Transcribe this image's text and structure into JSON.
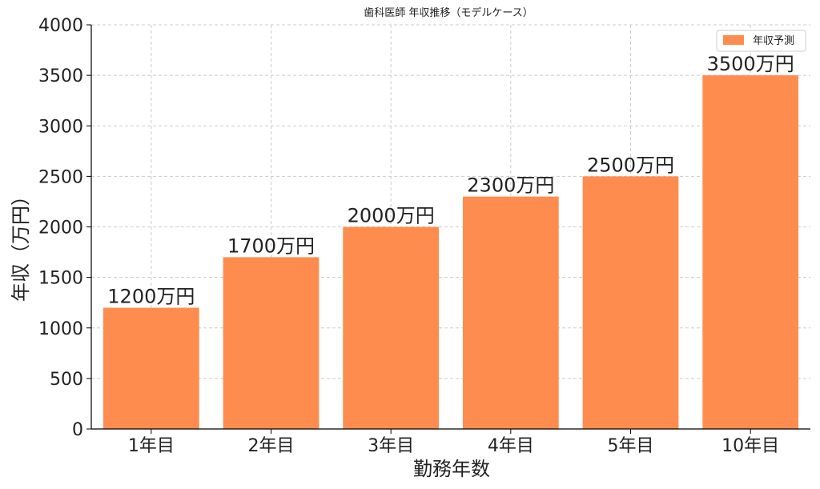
{
  "chart_data": {
    "type": "bar",
    "title": "歯科医師 年収推移（モデルケース）",
    "xlabel": "勤務年数",
    "ylabel": "年収（万円）",
    "categories": [
      "1年目",
      "2年目",
      "3年目",
      "4年目",
      "5年目",
      "10年目"
    ],
    "series": [
      {
        "name": "年収予測",
        "values": [
          1200,
          1700,
          2000,
          2300,
          2500,
          3500
        ]
      }
    ],
    "data_labels": [
      "1200万円",
      "1700万円",
      "2000万円",
      "2300万円",
      "2500万円",
      "3500万円"
    ],
    "ylim": [
      0,
      4000
    ],
    "yticks": [
      0,
      500,
      1000,
      1500,
      2000,
      2500,
      3000,
      3500,
      4000
    ],
    "grid": true,
    "legend_position": "top-right",
    "colors": {
      "bar": "#FF8C4F",
      "axis": "#000000",
      "grid": "#cccccc"
    }
  }
}
